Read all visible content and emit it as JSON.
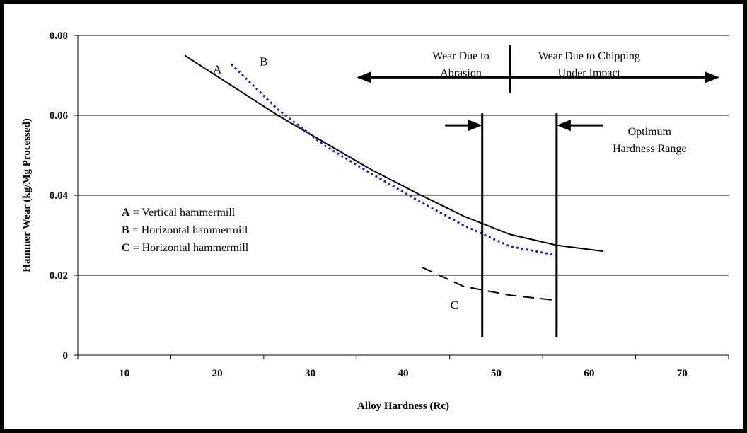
{
  "chart_data": {
    "type": "line",
    "title": "",
    "xlabel": "Alloy Hardness (Rc)",
    "ylabel": "Hammer Wear (kg/Mg Processed)",
    "xlim": [
      5,
      75
    ],
    "ylim": [
      0,
      0.08
    ],
    "x_ticks": [
      "10",
      "20",
      "30",
      "40",
      "50",
      "60",
      "70"
    ],
    "y_ticks": [
      "0",
      "0.02",
      "0.04",
      "0.06",
      "0.08"
    ],
    "grid": "horizontal",
    "series": [
      {
        "name": "A",
        "style": "solid",
        "color": "#000000",
        "x": [
          16.5,
          26.5,
          36.5,
          41.5,
          46.5,
          51.5,
          56.5,
          61.5
        ],
        "y": [
          0.075,
          0.06,
          0.0465,
          0.0405,
          0.0348,
          0.0302,
          0.0275,
          0.026
        ]
      },
      {
        "name": "B",
        "style": "dotted",
        "color": "#1f1fd6",
        "x": [
          21.5,
          26.5,
          31.5,
          36.5,
          41.5,
          46.5,
          51.5,
          56.5
        ],
        "y": [
          0.0728,
          0.0615,
          0.0525,
          0.0455,
          0.0388,
          0.0325,
          0.0272,
          0.025
        ]
      },
      {
        "name": "C",
        "style": "dashed",
        "color": "#000000",
        "x": [
          42,
          46.5,
          51.5,
          56.5
        ],
        "y": [
          0.022,
          0.0172,
          0.015,
          0.0137
        ]
      }
    ],
    "curve_labels": [
      {
        "text": "A",
        "x": 20,
        "y": 0.0705
      },
      {
        "text": "B",
        "x": 25,
        "y": 0.0725
      },
      {
        "text": "C",
        "x": 45.5,
        "y": 0.0115
      }
    ],
    "vertical_lines": [
      {
        "x": 48.5,
        "y_from": 0.0045,
        "y_to": 0.0605
      },
      {
        "x": 56.5,
        "y_from": 0.0045,
        "y_to": 0.0605
      }
    ],
    "annotations": {
      "abrasion_label": [
        "Wear Due to",
        "Abrasion"
      ],
      "chipping_label": [
        "Wear Due to Chipping",
        "Under Impact"
      ],
      "optimum_label": [
        "Optimum",
        "Hardness Range"
      ],
      "wear_arrow": {
        "x_from": 35,
        "x_divider": 51.5,
        "x_to": 74,
        "y": 0.0695
      },
      "optimum_arrows": {
        "left_from": 44.5,
        "left_to": 48.5,
        "right_from": 61.5,
        "right_to": 56.5,
        "y": 0.0575
      }
    },
    "legend": {
      "placement": "left-middle",
      "entries": [
        {
          "key": "A",
          "text": " = Vertical hammermill"
        },
        {
          "key": "B",
          "text": " = Horizontal hammermill"
        },
        {
          "key": "C",
          "text": " = Horizontal hammermill"
        }
      ]
    }
  }
}
